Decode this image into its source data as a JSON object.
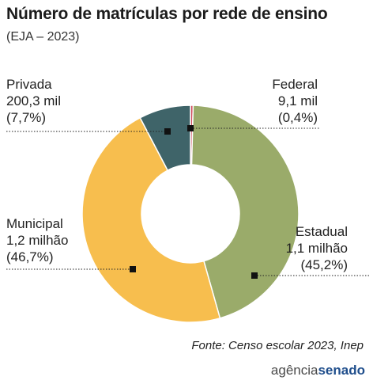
{
  "header": {
    "title": "Número de matrículas por rede de ensino",
    "subtitle": "(EJA – 2023)"
  },
  "chart_data": {
    "type": "pie",
    "donut": true,
    "title": "Número de matrículas por rede de ensino",
    "subtitle": "(EJA – 2023)",
    "slices": [
      {
        "name": "Federal",
        "label": "9,1 mil",
        "value": 9.1,
        "percent": 0.4,
        "percent_label": "(0,4%)",
        "color": "#d0495a"
      },
      {
        "name": "Estadual",
        "label": "1,1 milhão",
        "value": 1100,
        "percent": 45.2,
        "percent_label": "(45,2%)",
        "color": "#9aab6a"
      },
      {
        "name": "Municipal",
        "label": "1,2 milhão",
        "value": 1200,
        "percent": 46.7,
        "percent_label": "(46,7%)",
        "color": "#f7be4e"
      },
      {
        "name": "Privada",
        "label": "200,3 mil",
        "value": 200.3,
        "percent": 7.7,
        "percent_label": "(7,7%)",
        "color": "#3f6469"
      }
    ],
    "legend": "none"
  },
  "footer": {
    "source": "Fonte:  Censo escolar 2023, Inep",
    "logo_part1": "agência",
    "logo_part2": "senado"
  }
}
